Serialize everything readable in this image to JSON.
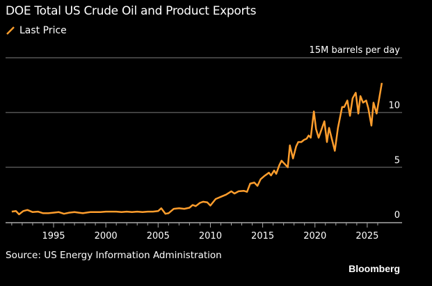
{
  "title": "DOE Total US Crude Oil and Product Exports",
  "legend": {
    "label": "Last Price",
    "color": "#FF9E2D"
  },
  "source": "Source: US Energy Information Administration",
  "brand": "Bloomberg",
  "chart_data": {
    "type": "line",
    "title": "DOE Total US Crude Oil and Product Exports",
    "unit_label": "15M barrels per day",
    "ylim": [
      0,
      15
    ],
    "xlim": [
      1990.6,
      2027.0
    ],
    "y_ticks": [
      {
        "value": 0,
        "label": "0"
      },
      {
        "value": 5,
        "label": "5"
      },
      {
        "value": 10,
        "label": "10"
      }
    ],
    "x_ticks": [
      {
        "value": 1995,
        "label": "1995"
      },
      {
        "value": 2000,
        "label": "2000"
      },
      {
        "value": 2005,
        "label": "2005"
      },
      {
        "value": 2010,
        "label": "2010"
      },
      {
        "value": 2015,
        "label": "2015"
      },
      {
        "value": 2020,
        "label": "2020"
      },
      {
        "value": 2025,
        "label": "2025"
      }
    ],
    "grid": true,
    "legend_position": "top-left",
    "series": [
      {
        "name": "Last Price",
        "color": "#FF9E2D",
        "x": [
          1991.0,
          1991.4,
          1991.7,
          1992.1,
          1992.5,
          1993.0,
          1993.5,
          1994.0,
          1994.5,
          1995.0,
          1995.5,
          1996.0,
          1996.5,
          1997.0,
          1997.4,
          1997.8,
          1998.5,
          1999.0,
          1999.5,
          2000.0,
          2000.5,
          2001.0,
          2001.5,
          2002.0,
          2002.5,
          2003.0,
          2003.5,
          2004.0,
          2004.5,
          2005.0,
          2005.3,
          2005.7,
          2006.0,
          2006.5,
          2007.0,
          2007.5,
          2008.0,
          2008.3,
          2008.6,
          2009.0,
          2009.3,
          2009.7,
          2010.0,
          2010.5,
          2011.0,
          2011.5,
          2012.0,
          2012.3,
          2012.7,
          2013.2,
          2013.5,
          2013.8,
          2014.2,
          2014.5,
          2014.8,
          2015.16,
          2015.6,
          2015.8,
          2016.1,
          2016.3,
          2016.6,
          2016.8,
          2017.2,
          2017.4,
          2017.6,
          2017.9,
          2018.2,
          2018.4,
          2018.7,
          2018.95,
          2019.2,
          2019.4,
          2019.6,
          2019.9,
          2020.1,
          2020.35,
          2020.9,
          2021.15,
          2021.35,
          2021.9,
          2022.2,
          2022.6,
          2022.8,
          2023.1,
          2023.35,
          2023.6,
          2023.9,
          2024.15,
          2024.35,
          2024.6,
          2024.9,
          2025.1,
          2025.4,
          2025.6,
          2025.9,
          2026.4
        ],
        "values": [
          0.95,
          1.0,
          0.7,
          1.0,
          1.1,
          0.9,
          0.95,
          0.8,
          0.8,
          0.85,
          0.9,
          0.75,
          0.85,
          0.9,
          0.85,
          0.8,
          0.9,
          0.9,
          0.9,
          0.95,
          0.95,
          0.95,
          0.9,
          0.95,
          0.9,
          0.95,
          0.9,
          0.95,
          0.95,
          1.0,
          1.25,
          0.75,
          0.8,
          1.2,
          1.25,
          1.2,
          1.3,
          1.55,
          1.45,
          1.75,
          1.85,
          1.8,
          1.5,
          2.1,
          2.3,
          2.5,
          2.8,
          2.6,
          2.8,
          2.85,
          2.75,
          3.5,
          3.6,
          3.3,
          3.9,
          4.2,
          4.5,
          4.25,
          4.7,
          4.4,
          5.2,
          5.6,
          5.2,
          5.0,
          7.0,
          5.8,
          6.9,
          7.3,
          7.3,
          7.5,
          7.6,
          7.9,
          7.7,
          10.1,
          8.5,
          7.7,
          9.2,
          7.3,
          8.6,
          6.5,
          8.6,
          10.5,
          10.5,
          11.1,
          9.7,
          11.3,
          11.8,
          9.9,
          11.5,
          10.9,
          11.1,
          10.4,
          8.8,
          10.9,
          9.9,
          12.7
        ]
      }
    ]
  }
}
